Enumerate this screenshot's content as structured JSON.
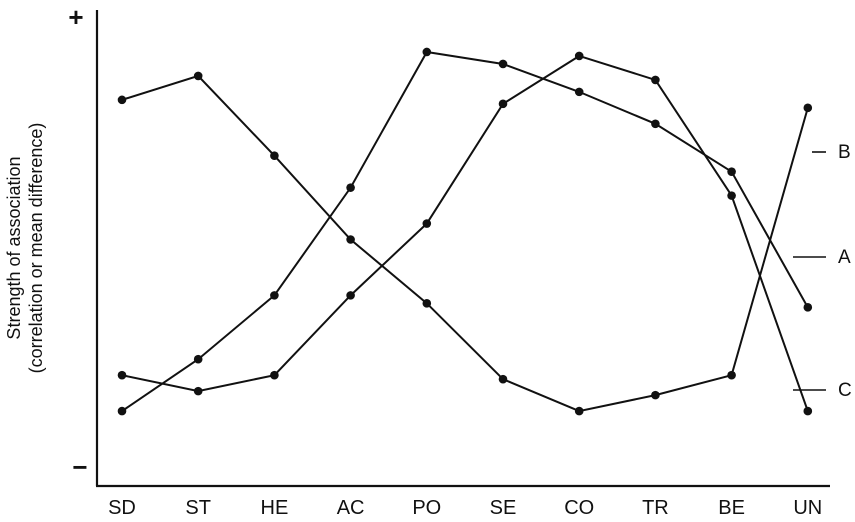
{
  "chart_data": {
    "type": "line",
    "categories": [
      "SD",
      "ST",
      "HE",
      "AC",
      "PO",
      "SE",
      "CO",
      "TR",
      "BE",
      "UN"
    ],
    "y_axis": {
      "label_line1": "Strength of association",
      "label_line2": "(correlation or mean difference)",
      "top_label": "+",
      "bottom_label": "−",
      "ylim": [
        0,
        100
      ]
    },
    "series": [
      {
        "name": "A",
        "values": [
          86,
          92,
          72,
          51,
          35,
          16,
          8,
          12,
          17,
          84
        ]
      },
      {
        "name": "B",
        "values": [
          8,
          21,
          37,
          64,
          98,
          95,
          88,
          80,
          68,
          34
        ]
      },
      {
        "name": "C",
        "values": [
          17,
          13,
          17,
          37,
          55,
          85,
          97,
          91,
          62,
          8
        ]
      }
    ],
    "grid": false,
    "legend": "inline-right"
  }
}
